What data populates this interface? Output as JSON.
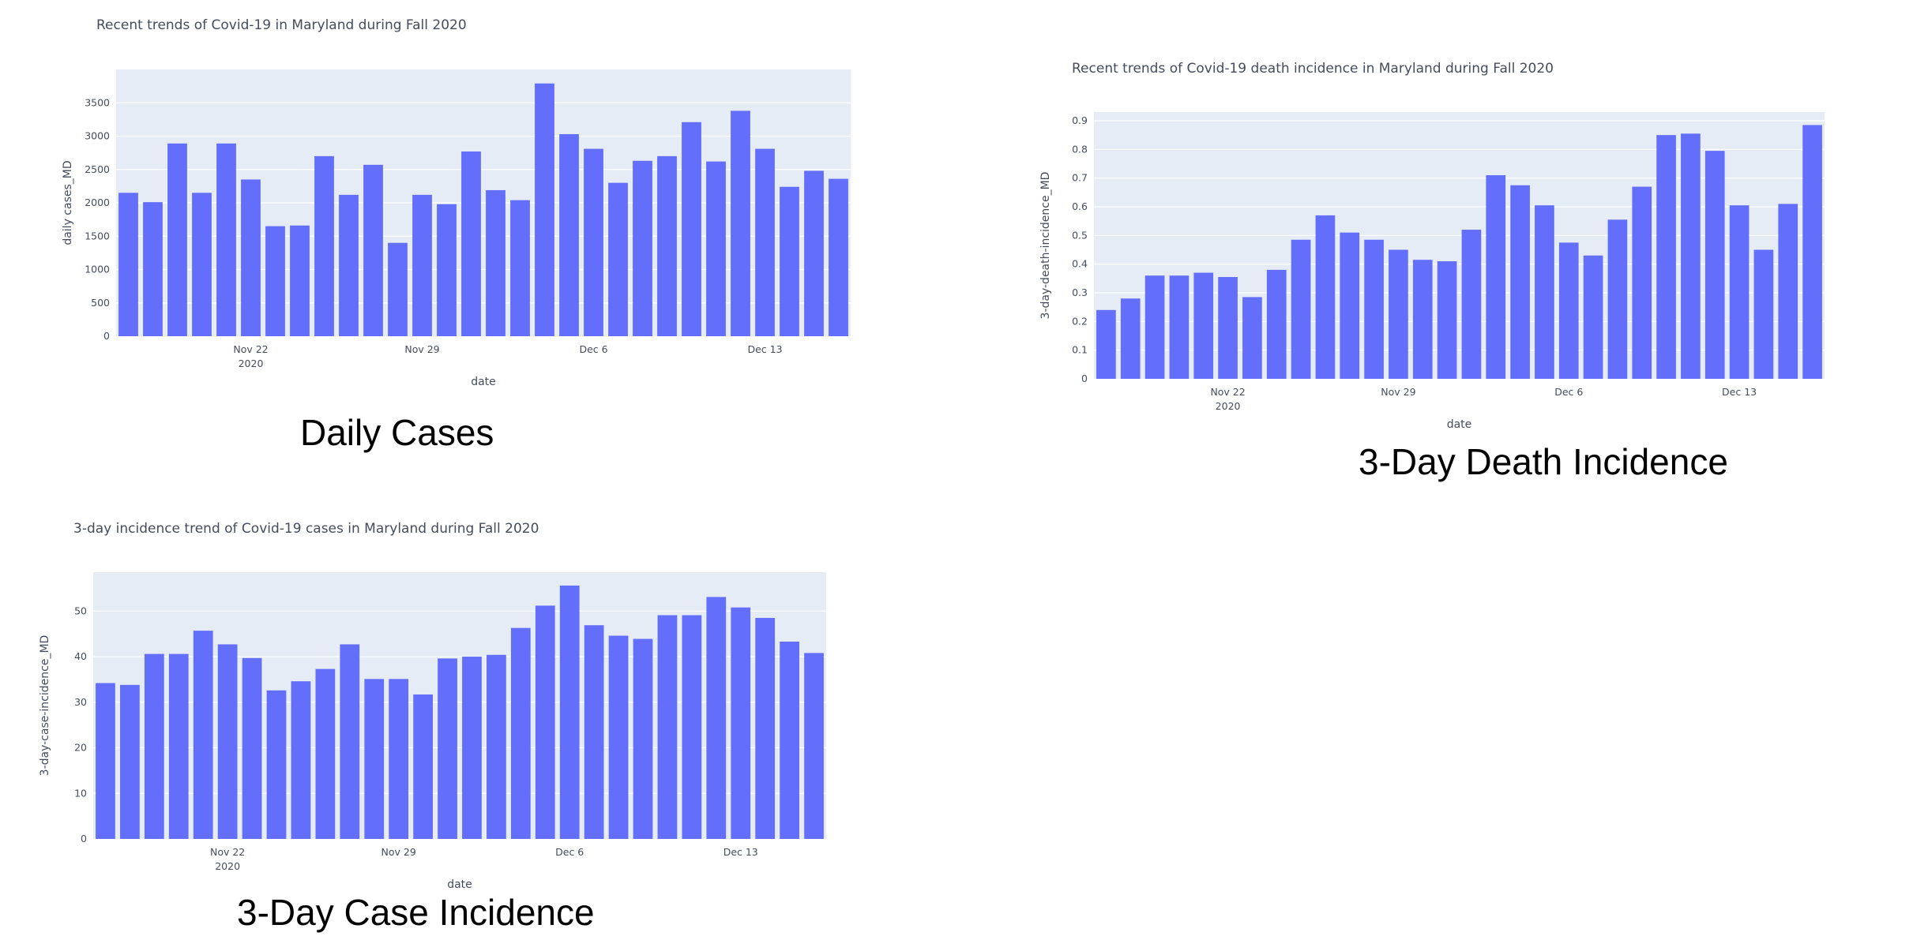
{
  "palette": {
    "bar": "#636efa",
    "plot_bg": "#e5ecf6",
    "grid": "#ffffff",
    "text": "#444c5c"
  },
  "captions": {
    "daily": "Daily Cases",
    "death": "3-Day Death Incidence",
    "incidence": "3-Day Case Incidence"
  },
  "chart_data": [
    {
      "id": "daily",
      "type": "bar",
      "title": "Recent trends of Covid-19 in Maryland during Fall 2020",
      "xlabel": "date",
      "ylabel": "daily cases_MD",
      "x": [
        "2020-11-17",
        "2020-11-18",
        "2020-11-19",
        "2020-11-20",
        "2020-11-21",
        "2020-11-22",
        "2020-11-23",
        "2020-11-24",
        "2020-11-25",
        "2020-11-26",
        "2020-11-27",
        "2020-11-28",
        "2020-11-29",
        "2020-11-30",
        "2020-12-01",
        "2020-12-02",
        "2020-12-03",
        "2020-12-04",
        "2020-12-05",
        "2020-12-06",
        "2020-12-07",
        "2020-12-08",
        "2020-12-09",
        "2020-12-10",
        "2020-12-11",
        "2020-12-12",
        "2020-12-13",
        "2020-12-14",
        "2020-12-15",
        "2020-12-16"
      ],
      "values": [
        2150,
        2010,
        2890,
        2150,
        2890,
        2350,
        1650,
        1660,
        2700,
        2120,
        2570,
        1400,
        2120,
        1980,
        2770,
        2190,
        2040,
        3790,
        3030,
        2810,
        2300,
        2630,
        2700,
        3210,
        2620,
        3380,
        2810,
        2240,
        2480,
        2360
      ],
      "ylim": [
        0,
        4000
      ],
      "yticks": [
        0,
        500,
        1000,
        1500,
        2000,
        2500,
        3000,
        3500
      ],
      "xticks": [
        {
          "date": "2020-11-22",
          "label": "Nov 22",
          "sublabel": "2020"
        },
        {
          "date": "2020-11-29",
          "label": "Nov 29"
        },
        {
          "date": "2020-12-06",
          "label": "Dec 6"
        },
        {
          "date": "2020-12-13",
          "label": "Dec 13"
        }
      ],
      "grid": true
    },
    {
      "id": "death",
      "type": "bar",
      "title": "Recent trends of Covid-19 death incidence in Maryland during Fall 2020",
      "xlabel": "date",
      "ylabel": "3-day-death-incidence_MD",
      "x": [
        "2020-11-17",
        "2020-11-18",
        "2020-11-19",
        "2020-11-20",
        "2020-11-21",
        "2020-11-22",
        "2020-11-23",
        "2020-11-24",
        "2020-11-25",
        "2020-11-26",
        "2020-11-27",
        "2020-11-28",
        "2020-11-29",
        "2020-11-30",
        "2020-12-01",
        "2020-12-02",
        "2020-12-03",
        "2020-12-04",
        "2020-12-05",
        "2020-12-06",
        "2020-12-07",
        "2020-12-08",
        "2020-12-09",
        "2020-12-10",
        "2020-12-11",
        "2020-12-12",
        "2020-12-13",
        "2020-12-14",
        "2020-12-15",
        "2020-12-16"
      ],
      "values": [
        0.24,
        0.28,
        0.36,
        0.36,
        0.37,
        0.355,
        0.285,
        0.38,
        0.485,
        0.57,
        0.51,
        0.485,
        0.45,
        0.415,
        0.41,
        0.52,
        0.71,
        0.675,
        0.605,
        0.475,
        0.43,
        0.555,
        0.67,
        0.85,
        0.855,
        0.795,
        0.605,
        0.45,
        0.61,
        0.885
      ],
      "ylim": [
        0,
        0.9302
      ],
      "yticks": [
        0,
        0.1,
        0.2,
        0.3,
        0.4,
        0.5,
        0.6,
        0.7,
        0.8,
        0.9
      ],
      "xticks": [
        {
          "date": "2020-11-22",
          "label": "Nov 22",
          "sublabel": "2020"
        },
        {
          "date": "2020-11-29",
          "label": "Nov 29"
        },
        {
          "date": "2020-12-06",
          "label": "Dec 6"
        },
        {
          "date": "2020-12-13",
          "label": "Dec 13"
        }
      ],
      "grid": true
    },
    {
      "id": "incidence",
      "type": "bar",
      "title": "3-day incidence trend of Covid-19 cases in Maryland during Fall 2020",
      "xlabel": "date",
      "ylabel": "3-day-case-incidence_MD",
      "x": [
        "2020-11-17",
        "2020-11-18",
        "2020-11-19",
        "2020-11-20",
        "2020-11-21",
        "2020-11-22",
        "2020-11-23",
        "2020-11-24",
        "2020-11-25",
        "2020-11-26",
        "2020-11-27",
        "2020-11-28",
        "2020-11-29",
        "2020-11-30",
        "2020-12-01",
        "2020-12-02",
        "2020-12-03",
        "2020-12-04",
        "2020-12-05",
        "2020-12-06",
        "2020-12-07",
        "2020-12-08",
        "2020-12-09",
        "2020-12-10",
        "2020-12-11",
        "2020-12-12",
        "2020-12-13",
        "2020-12-14",
        "2020-12-15",
        "2020-12-16"
      ],
      "values": [
        34.2,
        33.8,
        40.6,
        40.6,
        45.7,
        42.7,
        39.7,
        32.6,
        34.6,
        37.3,
        42.7,
        35.1,
        35.1,
        31.7,
        39.6,
        40,
        40.4,
        46.3,
        51.2,
        55.6,
        46.9,
        44.6,
        43.9,
        49.1,
        49.1,
        53.1,
        50.8,
        48.5,
        43.3,
        40.8
      ],
      "ylim": [
        0,
        58.54
      ],
      "yticks": [
        0,
        10,
        20,
        30,
        40,
        50
      ],
      "xticks": [
        {
          "date": "2020-11-22",
          "label": "Nov 22",
          "sublabel": "2020"
        },
        {
          "date": "2020-11-29",
          "label": "Nov 29"
        },
        {
          "date": "2020-12-06",
          "label": "Dec 6"
        },
        {
          "date": "2020-12-13",
          "label": "Dec 13"
        }
      ],
      "grid": true
    }
  ]
}
